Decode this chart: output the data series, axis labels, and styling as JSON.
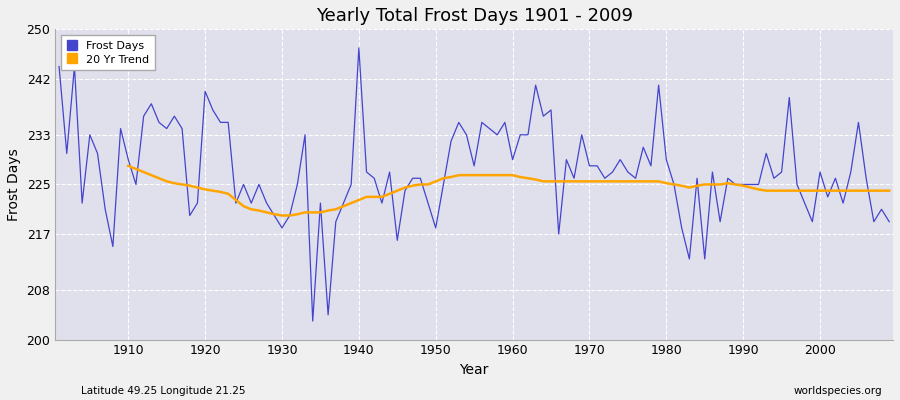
{
  "title": "Yearly Total Frost Days 1901 - 2009",
  "xlabel": "Year",
  "ylabel": "Frost Days",
  "footnote_left": "Latitude 49.25 Longitude 21.25",
  "footnote_right": "worldspecies.org",
  "bg_color": "#f0f0f0",
  "plot_bg_color": "#e0e0ec",
  "line_color": "#4444cc",
  "trend_color": "#ffa500",
  "ylim": [
    200,
    250
  ],
  "yticks": [
    200,
    208,
    217,
    225,
    233,
    242,
    250
  ],
  "years": [
    1901,
    1902,
    1903,
    1904,
    1905,
    1906,
    1907,
    1908,
    1909,
    1910,
    1911,
    1912,
    1913,
    1914,
    1915,
    1916,
    1917,
    1918,
    1919,
    1920,
    1921,
    1922,
    1923,
    1924,
    1925,
    1926,
    1927,
    1928,
    1929,
    1930,
    1931,
    1932,
    1933,
    1934,
    1935,
    1936,
    1937,
    1938,
    1939,
    1940,
    1941,
    1942,
    1943,
    1944,
    1945,
    1946,
    1947,
    1948,
    1949,
    1950,
    1951,
    1952,
    1953,
    1954,
    1955,
    1956,
    1957,
    1958,
    1959,
    1960,
    1961,
    1962,
    1963,
    1964,
    1965,
    1966,
    1967,
    1968,
    1969,
    1970,
    1971,
    1972,
    1973,
    1974,
    1975,
    1976,
    1977,
    1978,
    1979,
    1980,
    1981,
    1982,
    1983,
    1984,
    1985,
    1986,
    1987,
    1988,
    1989,
    1990,
    1991,
    1992,
    1993,
    1994,
    1995,
    1996,
    1997,
    1998,
    1999,
    2000,
    2001,
    2002,
    2003,
    2004,
    2005,
    2006,
    2007,
    2008,
    2009
  ],
  "frost_days": [
    244,
    230,
    244,
    222,
    233,
    230,
    221,
    215,
    234,
    229,
    225,
    236,
    238,
    235,
    234,
    236,
    234,
    220,
    222,
    240,
    237,
    235,
    235,
    222,
    225,
    222,
    225,
    222,
    220,
    218,
    220,
    225,
    233,
    203,
    222,
    204,
    219,
    222,
    225,
    247,
    227,
    226,
    222,
    227,
    216,
    224,
    226,
    226,
    222,
    218,
    225,
    232,
    235,
    233,
    228,
    235,
    234,
    233,
    235,
    229,
    233,
    233,
    241,
    236,
    237,
    217,
    229,
    226,
    233,
    228,
    228,
    226,
    227,
    229,
    227,
    226,
    231,
    228,
    241,
    229,
    225,
    218,
    213,
    226,
    213,
    227,
    219,
    226,
    225,
    225,
    225,
    225,
    230,
    226,
    227,
    239,
    225,
    222,
    219,
    227,
    223,
    226,
    222,
    227,
    235,
    226,
    219,
    221,
    219
  ],
  "trend_years": [
    1910,
    1911,
    1912,
    1913,
    1914,
    1915,
    1916,
    1917,
    1918,
    1919,
    1920,
    1921,
    1922,
    1923,
    1924,
    1925,
    1926,
    1927,
    1928,
    1929,
    1930,
    1931,
    1932,
    1933,
    1934,
    1935,
    1936,
    1937,
    1938,
    1939,
    1940,
    1941,
    1942,
    1943,
    1944,
    1945,
    1946,
    1947,
    1948,
    1949,
    1950,
    1951,
    1952,
    1953,
    1954,
    1955,
    1956,
    1957,
    1958,
    1959,
    1960,
    1961,
    1962,
    1963,
    1964,
    1965,
    1966,
    1967,
    1968,
    1969,
    1970,
    1971,
    1972,
    1973,
    1974,
    1975,
    1976,
    1977,
    1978,
    1979,
    1980,
    1981,
    1982,
    1983,
    1984,
    1985,
    1986,
    1987,
    1988,
    1989,
    1990,
    1991,
    1992,
    1993,
    1994,
    1995,
    1996,
    1997,
    1998,
    1999,
    2000,
    2001,
    2002,
    2003,
    2004,
    2005,
    2006,
    2007,
    2008,
    2009
  ],
  "trend_values": [
    228,
    227.5,
    227,
    226.5,
    226,
    225.5,
    225.2,
    225,
    224.8,
    224.5,
    224.2,
    224,
    223.8,
    223.5,
    222.5,
    221.5,
    221,
    220.8,
    220.5,
    220.2,
    220,
    220,
    220.2,
    220.5,
    220.5,
    220.5,
    220.8,
    221,
    221.5,
    222,
    222.5,
    223,
    223,
    223,
    223.5,
    224,
    224.5,
    224.8,
    225,
    225,
    225.5,
    226,
    226.2,
    226.5,
    226.5,
    226.5,
    226.5,
    226.5,
    226.5,
    226.5,
    226.5,
    226.2,
    226,
    225.8,
    225.5,
    225.5,
    225.5,
    225.5,
    225.5,
    225.5,
    225.5,
    225.5,
    225.5,
    225.5,
    225.5,
    225.5,
    225.5,
    225.5,
    225.5,
    225.5,
    225.2,
    225,
    224.8,
    224.5,
    224.8,
    225,
    225,
    225,
    225.2,
    225,
    224.8,
    224.5,
    224.2,
    224,
    224,
    224,
    224,
    224,
    224,
    224,
    224,
    224,
    224,
    224,
    224,
    224,
    224,
    224,
    224,
    224
  ]
}
